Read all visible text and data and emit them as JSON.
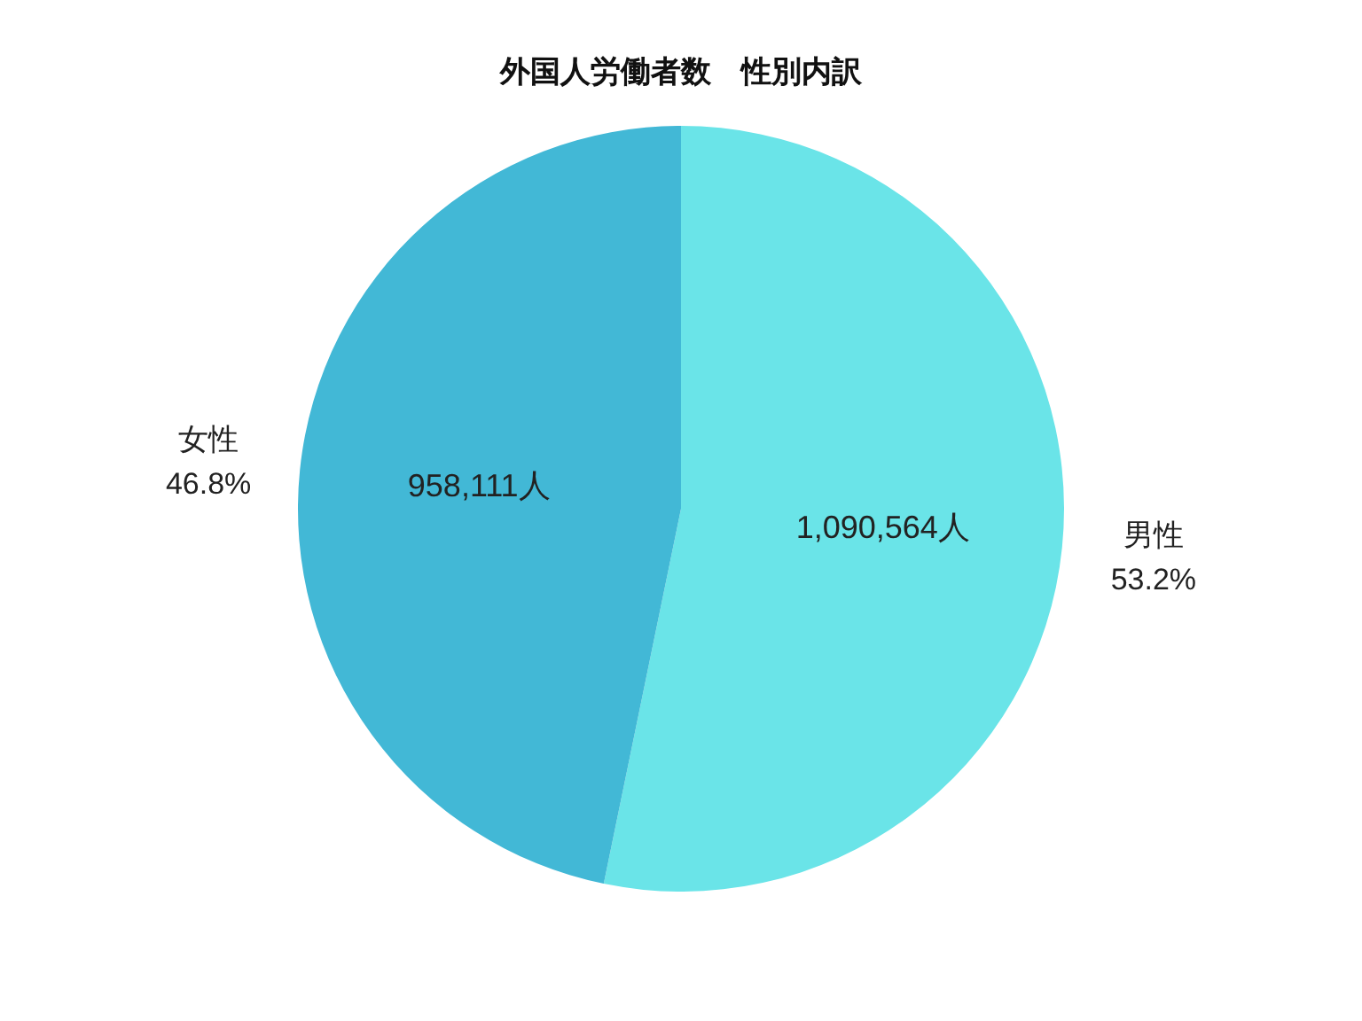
{
  "chart_data": {
    "type": "pie",
    "title": "外国人労働者数　性別内訳",
    "categories": [
      "男性",
      "女性"
    ],
    "values": [
      1090564,
      958111
    ],
    "colors": [
      "#6ae4e8",
      "#42b8d6"
    ],
    "value_labels": [
      "1,090,564人",
      "958,111人"
    ],
    "annotations": [
      "53.2%",
      "46.8%"
    ]
  }
}
